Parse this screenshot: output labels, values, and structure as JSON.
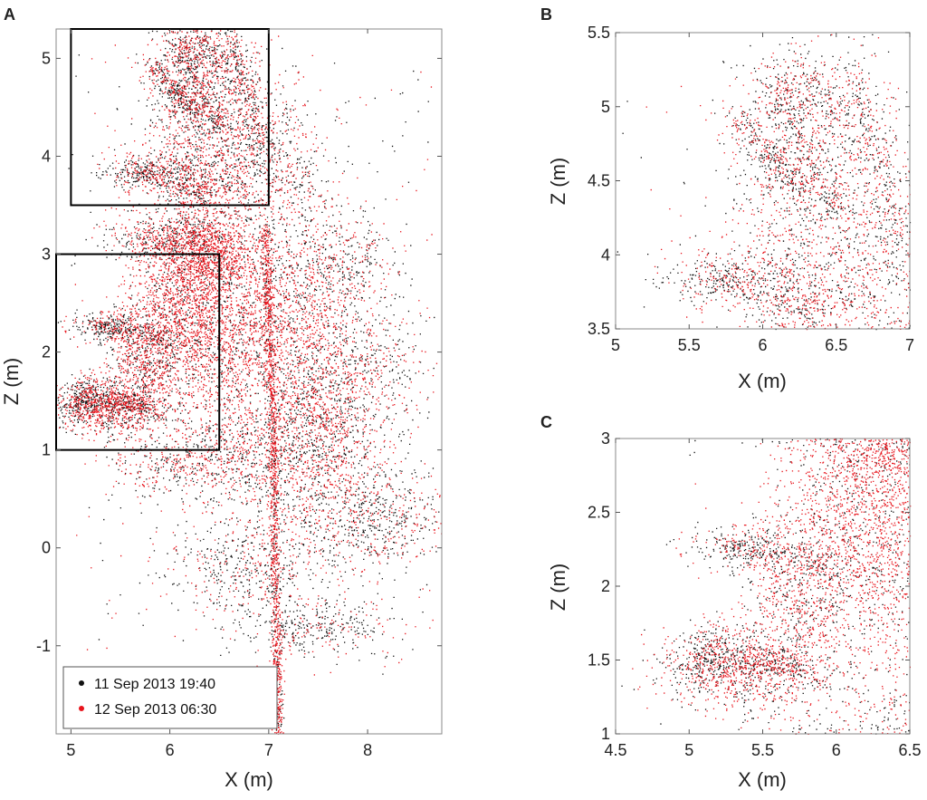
{
  "legend": {
    "entries": [
      {
        "label": "11 Sep 2013 19:40",
        "color": "#111111"
      },
      {
        "label": "12 Sep 2013 06:30",
        "color": "#e8141c"
      }
    ],
    "placement": "bottom-left of panel A"
  },
  "chart_data": [
    {
      "id": "A",
      "panel_label": "A",
      "type": "scatter",
      "xlabel": "X (m)",
      "ylabel": "Z (m)",
      "xlim": [
        4.85,
        8.75
      ],
      "ylim": [
        -1.9,
        5.3
      ],
      "xticks": [
        5,
        6,
        7,
        8
      ],
      "yticks": [
        -1,
        0,
        1,
        2,
        3,
        4,
        5
      ],
      "grid": false,
      "highlight_boxes": [
        {
          "x": [
            5.0,
            7.0
          ],
          "y": [
            3.5,
            5.3
          ]
        },
        {
          "x": [
            4.85,
            6.5
          ],
          "y": [
            1.0,
            3.0
          ]
        }
      ],
      "series": [
        {
          "name": "11 Sep 2013 19:40",
          "color": "#111111"
        },
        {
          "name": "12 Sep 2013 06:30",
          "color": "#e8141c"
        }
      ]
    },
    {
      "id": "B",
      "panel_label": "B",
      "type": "scatter",
      "xlabel": "X (m)",
      "ylabel": "Z (m)",
      "xlim": [
        5,
        7
      ],
      "ylim": [
        3.5,
        5.5
      ],
      "xticks": [
        5,
        5.5,
        6,
        6.5,
        7
      ],
      "yticks": [
        3.5,
        4,
        4.5,
        5,
        5.5
      ],
      "grid": false,
      "series": [
        {
          "name": "11 Sep 2013 19:40",
          "color": "#111111"
        },
        {
          "name": "12 Sep 2013 06:30",
          "color": "#e8141c"
        }
      ]
    },
    {
      "id": "C",
      "panel_label": "C",
      "type": "scatter",
      "xlabel": "X (m)",
      "ylabel": "Z (m)",
      "xlim": [
        4.5,
        6.5
      ],
      "ylim": [
        1,
        3
      ],
      "xticks": [
        4.5,
        5,
        5.5,
        6,
        6.5
      ],
      "yticks": [
        1,
        1.5,
        2,
        2.5,
        3
      ],
      "grid": false,
      "series": [
        {
          "name": "11 Sep 2013 19:40",
          "color": "#111111"
        },
        {
          "name": "12 Sep 2013 06:30",
          "color": "#e8141c"
        }
      ]
    }
  ]
}
